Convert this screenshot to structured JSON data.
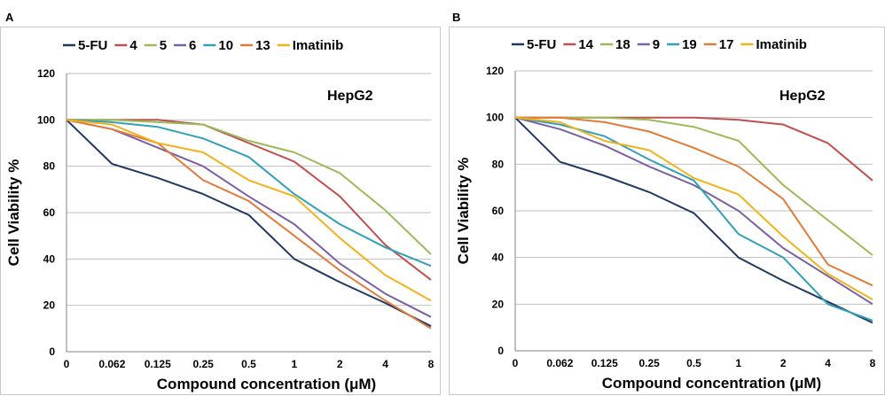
{
  "chart_data": [
    {
      "type": "line",
      "panel_label": "A",
      "annotation": "HepG2",
      "xlabel": "Compound concentration (μM)",
      "ylabel": "Cell Viability %",
      "x": [
        "0",
        "0.062",
        "0.125",
        "0.25",
        "0.5",
        "1",
        "2",
        "4",
        "8"
      ],
      "ylim": [
        0,
        120
      ],
      "yticks": [
        0,
        20,
        40,
        60,
        80,
        100,
        120
      ],
      "grid": true,
      "legend": "top",
      "series": [
        {
          "name": "5-FU",
          "color": "#1f3864",
          "values": [
            100,
            81,
            75,
            68,
            59,
            40,
            30,
            21,
            11
          ]
        },
        {
          "name": "4",
          "color": "#c0504d",
          "values": [
            100,
            100,
            100,
            98,
            90,
            82,
            67,
            46,
            31
          ]
        },
        {
          "name": "5",
          "color": "#9bbb59",
          "values": [
            100,
            100,
            99,
            98,
            91,
            86,
            77,
            61,
            42
          ]
        },
        {
          "name": "6",
          "color": "#7b5fa3",
          "values": [
            100,
            96,
            88,
            80,
            67,
            55,
            38,
            25,
            15
          ]
        },
        {
          "name": "10",
          "color": "#31a0b8",
          "values": [
            100,
            99,
            97,
            92,
            84,
            68,
            55,
            45,
            37
          ]
        },
        {
          "name": "13",
          "color": "#e07b39",
          "values": [
            100,
            96,
            90,
            74,
            65,
            50,
            35,
            22,
            10
          ]
        },
        {
          "name": "Imatinib",
          "color": "#f2b21b",
          "values": [
            100,
            98,
            90,
            86,
            74,
            67,
            49,
            33,
            22
          ]
        }
      ]
    },
    {
      "type": "line",
      "panel_label": "B",
      "annotation": "HepG2",
      "xlabel": "Compound concentration (μM)",
      "ylabel": "Cell Viability %",
      "x": [
        "0",
        "0.062",
        "0.125",
        "0.25",
        "0.5",
        "1",
        "2",
        "4",
        "8"
      ],
      "ylim": [
        0,
        120
      ],
      "yticks": [
        0,
        20,
        40,
        60,
        80,
        100,
        120
      ],
      "grid": true,
      "legend": "top",
      "series": [
        {
          "name": "5-FU",
          "color": "#1f3864",
          "values": [
            100,
            81,
            75,
            68,
            59,
            40,
            30,
            21,
            12
          ]
        },
        {
          "name": "14",
          "color": "#c0504d",
          "values": [
            100,
            100,
            100,
            100,
            100,
            99,
            97,
            89,
            73
          ]
        },
        {
          "name": "18",
          "color": "#9bbb59",
          "values": [
            100,
            100,
            100,
            99,
            96,
            90,
            71,
            56,
            41
          ]
        },
        {
          "name": "9",
          "color": "#7b5fa3",
          "values": [
            100,
            95,
            88,
            79,
            71,
            60,
            44,
            32,
            20
          ]
        },
        {
          "name": "19",
          "color": "#31a0b8",
          "values": [
            100,
            97,
            92,
            82,
            73,
            50,
            40,
            20,
            13
          ]
        },
        {
          "name": "17",
          "color": "#e07b39",
          "values": [
            100,
            100,
            98,
            94,
            87,
            79,
            65,
            37,
            28
          ]
        },
        {
          "name": "Imatinib",
          "color": "#f2b21b",
          "values": [
            100,
            98,
            90,
            86,
            74,
            67,
            49,
            33,
            22
          ]
        }
      ]
    }
  ]
}
